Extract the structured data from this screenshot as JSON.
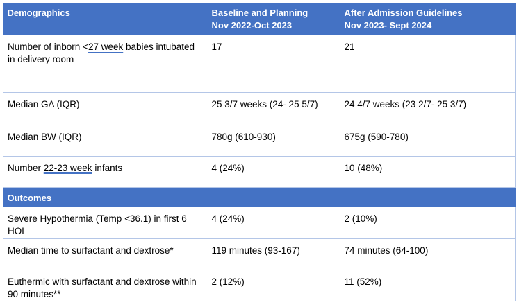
{
  "demographics": {
    "header": {
      "col1": "Demographics",
      "col2_line1": "Baseline and Planning",
      "col2_line2": "Nov 2022-Oct 2023",
      "col3_line1": "After Admission Guidelines",
      "col3_line2": "Nov 2023- Sept 2024"
    },
    "rows": [
      {
        "label_pre": "Number of inborn <",
        "label_ul": "27 week",
        "label_post": " babies intubated in delivery room",
        "baseline": "17",
        "after": "21"
      },
      {
        "label": "Median GA (IQR)",
        "baseline": "25 3/7 weeks (24- 25 5/7)",
        "after": "24 4/7 weeks (23 2/7- 25 3/7)"
      },
      {
        "label": "Median BW (IQR)",
        "baseline": "780g (610-930)",
        "after": "675g (590-780)"
      },
      {
        "label_pre": "Number ",
        "label_ul": "22-23 week",
        "label_post": " infants",
        "baseline": "4 (24%)",
        "after": "10 (48%)"
      }
    ]
  },
  "outcomes": {
    "header": "Outcomes",
    "rows": [
      {
        "label": "Severe Hypothermia (Temp <36.1) in first 6 HOL",
        "baseline": "4 (24%)",
        "after": "2 (10%)"
      },
      {
        "label": "Median time to surfactant and dextrose*",
        "baseline": "119 minutes (93-167)",
        "after": "74 minutes (64-100)"
      },
      {
        "label": "Euthermic with surfactant and dextrose within 90 minutes**",
        "baseline": "2 (12%)",
        "after": "11 (52%)"
      }
    ]
  }
}
